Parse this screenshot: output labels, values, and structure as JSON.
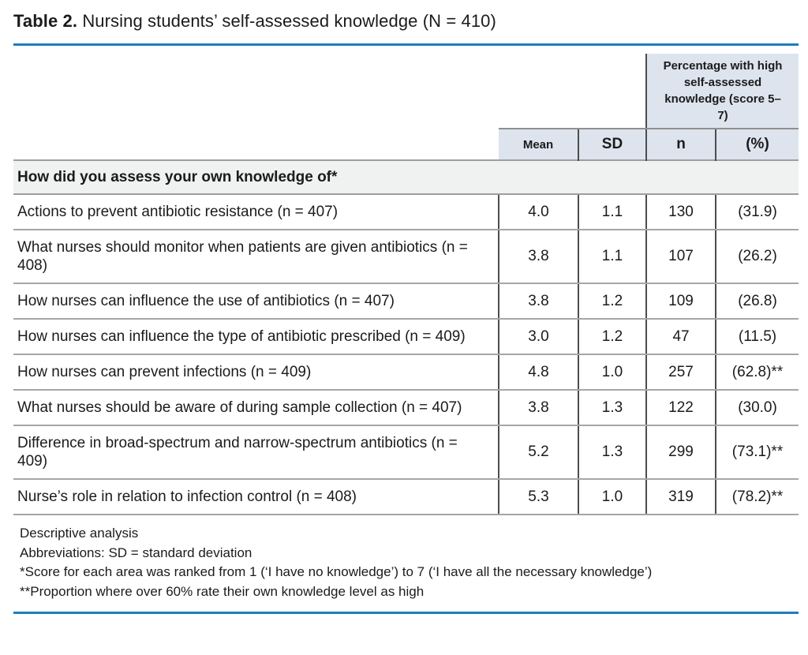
{
  "title": {
    "label": "Table 2.",
    "text": "Nursing students’ self-assessed knowledge (N = 410)"
  },
  "table": {
    "span_header": "Percentage with high self-assessed knowledge (score 5–7)",
    "columns": [
      "Mean",
      "SD",
      "n",
      "(%)"
    ],
    "section_header": "How did you assess your own knowledge of*",
    "rows": [
      {
        "label": "Actions to prevent antibiotic resistance (n = 407)",
        "mean": "4.0",
        "sd": "1.1",
        "n": "130",
        "pct": "(31.9)"
      },
      {
        "label": "What nurses should monitor when patients are given antibiotics (n = 408)",
        "mean": "3.8",
        "sd": "1.1",
        "n": "107",
        "pct": "(26.2)"
      },
      {
        "label": "How nurses can influence the use of antibiotics (n = 407)",
        "mean": "3.8",
        "sd": "1.2",
        "n": "109",
        "pct": "(26.8)"
      },
      {
        "label": "How nurses can influence the type of antibiotic prescribed (n = 409)",
        "mean": "3.0",
        "sd": "1.2",
        "n": "47",
        "pct": "(11.5)"
      },
      {
        "label": "How nurses can prevent infections (n = 409)",
        "mean": "4.8",
        "sd": "1.0",
        "n": "257",
        "pct": "(62.8)**"
      },
      {
        "label": "What nurses should be aware of during sample collection (n = 407)",
        "mean": "3.8",
        "sd": "1.3",
        "n": "122",
        "pct": "(30.0)"
      },
      {
        "label": "Difference in broad-spectrum and narrow-spectrum antibiotics (n = 409)",
        "mean": "5.2",
        "sd": "1.3",
        "n": "299",
        "pct": "(73.1)**"
      },
      {
        "label": "Nurse’s role in relation to infection control (n = 408)",
        "mean": "5.3",
        "sd": "1.0",
        "n": "319",
        "pct": "(78.2)**"
      }
    ]
  },
  "footnotes": [
    "Descriptive analysis",
    "Abbreviations: SD = standard deviation",
    "*Score for each area was ranked from 1 (‘I have no knowledge’) to 7 (‘I have all the necessary knowledge’)",
    "**Proportion where over 60% rate their own knowledge level as high"
  ],
  "colors": {
    "accent_rule": "#1e7dbd",
    "header_cell_bg": "#dde4ee",
    "section_row_bg": "#f0f1f1",
    "border_vertical": "#4d4d4d",
    "border_horizontal": "#a6a6a6",
    "text": "#1b1b1b"
  }
}
